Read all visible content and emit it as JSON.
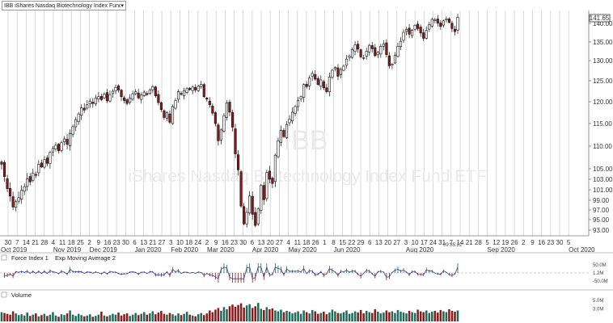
{
  "toolbar": {
    "symbol_label": "IBB iShares Nasdaq Biotechnology Index Fund ETF",
    "watermark_symbol": "IBB",
    "watermark_name": "iShares Nasdaq Biotechnology Index Fund ETF",
    "last_price_label": "141.65",
    "time_label": "09:35:22"
  },
  "colors": {
    "up": "#ffffff",
    "down": "#8b1a1a",
    "outline": "#111111",
    "grid": "#c8c8c8",
    "volume_up": "#1f6b5c",
    "volume_down": "#8b1a1a",
    "force_line": "#3b3b8f",
    "ema_line": "#6a2a2a"
  },
  "chart_data": [
    {
      "type": "candlestick",
      "title": "IBB iShares Nasdaq Biotechnology Index Fund ETF",
      "y_ticks": [
        "140.00",
        "135.00",
        "130.00",
        "125.00",
        "120.00",
        "115.00",
        "110.00",
        "105.00",
        "103.00",
        "101.00",
        "99.00",
        "97.00",
        "95.00",
        "93.00"
      ],
      "x_ticks": [
        "30",
        "7",
        "14",
        "21",
        "28",
        "4",
        "11",
        "18",
        "25",
        "2",
        "9",
        "16",
        "23",
        "30",
        "6",
        "13",
        "21",
        "27",
        "3",
        "10",
        "18",
        "24",
        "2",
        "9",
        "16",
        "23",
        "30",
        "6",
        "13",
        "20",
        "27",
        "4",
        "11",
        "18",
        "26",
        "1",
        "8",
        "15",
        "22",
        "29",
        "6",
        "13",
        "20",
        "27",
        "3",
        "10",
        "17",
        "24",
        "31",
        "7",
        "14",
        "21",
        "28",
        "5",
        "12",
        "19",
        "26",
        "2",
        "9",
        "16",
        "23",
        "30",
        "5"
      ],
      "month_labels": [
        "Oct 2019",
        "Nov 2019",
        "Dec 2019",
        "Jan 2020",
        "Feb 2020",
        "Mar 2020",
        "Apr 2020",
        "May 2020",
        "Jun 2020",
        "Aug 2020",
        "Sep 2020",
        "Oct 2020"
      ],
      "closes": [
        106.0,
        103.5,
        101.2,
        99.8,
        97.6,
        98.7,
        99.5,
        100.9,
        101.6,
        103.1,
        102.5,
        104.2,
        103.8,
        106.0,
        105.4,
        107.0,
        106.2,
        108.6,
        109.5,
        110.2,
        109.0,
        110.8,
        111.6,
        110.4,
        112.8,
        114.3,
        115.9,
        117.2,
        118.6,
        118.1,
        119.3,
        120.1,
        119.6,
        120.9,
        121.2,
        120.5,
        121.8,
        120.2,
        121.7,
        122.5,
        123.4,
        122.8,
        121.2,
        120.3,
        119.6,
        120.8,
        121.9,
        122.4,
        120.9,
        121.6,
        122.3,
        121.7,
        122.8,
        123.6,
        121.4,
        119.8,
        118.2,
        116.4,
        117.5,
        115.3,
        118.9,
        120.3,
        122.4,
        121.8,
        122.6,
        123.1,
        122.9,
        123.5,
        122.8,
        123.7,
        124.1,
        121.2,
        120.6,
        119.3,
        117.4,
        115.0,
        111.2,
        113.6,
        116.8,
        119.7,
        117.6,
        114.2,
        108.3,
        104.8,
        97.8,
        94.2,
        96.5,
        99.8,
        96.1,
        93.9,
        97.2,
        101.8,
        99.1,
        104.3,
        103.0,
        102.2,
        108.0,
        111.2,
        113.5,
        112.1,
        114.8,
        116.0,
        117.6,
        118.9,
        120.3,
        121.2,
        124.1,
        123.6,
        125.7,
        126.8,
        125.4,
        124.1,
        125.2,
        123.3,
        122.4,
        125.9,
        127.6,
        128.3,
        126.1,
        127.8,
        128.6,
        130.4,
        131.2,
        132.9,
        134.2,
        133.1,
        131.0,
        130.8,
        132.5,
        134.1,
        133.2,
        131.3,
        132.2,
        133.8,
        134.5,
        131.6,
        128.7,
        129.1,
        131.4,
        133.8,
        135.2,
        137.6,
        138.4,
        137.1,
        138.2,
        139.5,
        138.6,
        137.4,
        136.0,
        138.1,
        139.7,
        141.1,
        141.0,
        140.1,
        139.2,
        140.7,
        141.2,
        140.3,
        138.6,
        137.8,
        141.65
      ],
      "force_index_label": "Force Index 1",
      "ema_label": "Exp Moving Average 2",
      "force_ticks": [
        "50.0M",
        "1.2M",
        "-50.0M"
      ],
      "force_y_range": [
        -60,
        60
      ],
      "volume_label": "Volume",
      "volume_ticks": [
        "5.0M",
        "3.0M"
      ],
      "volumes": [
        2.2,
        2.0,
        1.8,
        1.6,
        2.4,
        1.9,
        1.5,
        1.7,
        1.4,
        2.1,
        1.3,
        1.6,
        1.9,
        1.2,
        1.5,
        1.8,
        1.3,
        1.6,
        2.2,
        1.4,
        1.1,
        1.7,
        1.5,
        1.9,
        2.6,
        1.6,
        1.3,
        1.8,
        1.5,
        1.2,
        1.4,
        1.7,
        1.1,
        1.3,
        1.6,
        2.3,
        1.4,
        1.2,
        1.5,
        1.8,
        1.6,
        2.1,
        1.4,
        1.7,
        1.9,
        1.3,
        1.6,
        2.0,
        1.5,
        1.8,
        2.2,
        1.6,
        1.9,
        2.4,
        1.7,
        2.1,
        2.5,
        1.8,
        1.6,
        2.0,
        1.7,
        1.4,
        1.9,
        1.5,
        1.8,
        2.3,
        1.6,
        1.4,
        1.2,
        1.7,
        2.0,
        1.5,
        1.9,
        2.6,
        2.2,
        2.8,
        3.2,
        2.5,
        3.4,
        2.9,
        3.6,
        4.0,
        3.5,
        3.9,
        4.3,
        3.3,
        3.8,
        4.1,
        3.2,
        3.6,
        4.4,
        3.0,
        2.7,
        3.4,
        2.9,
        3.1,
        2.6,
        2.4,
        2.8,
        2.2,
        2.5,
        2.3,
        1.9,
        2.1,
        2.4,
        1.8,
        2.6,
        2.2,
        1.9,
        2.7,
        2.4,
        1.8,
        2.0,
        2.3,
        1.7,
        2.1,
        2.8,
        2.4,
        2.0,
        1.9,
        2.2,
        2.6,
        1.8,
        2.0,
        2.4,
        2.1,
        2.7,
        1.9,
        2.5,
        2.2,
        2.0,
        2.9,
        2.3,
        1.9,
        2.1,
        2.6,
        2.2,
        2.4,
        2.0,
        2.7,
        2.3,
        2.1,
        1.9,
        2.5,
        2.2,
        2.0,
        2.8,
        2.4,
        2.2,
        2.6,
        2.0,
        2.3,
        2.5,
        2.1,
        2.7,
        2.4,
        2.2,
        2.9,
        2.5,
        2.3,
        2.6,
        3.0
      ],
      "grid": true
    }
  ]
}
